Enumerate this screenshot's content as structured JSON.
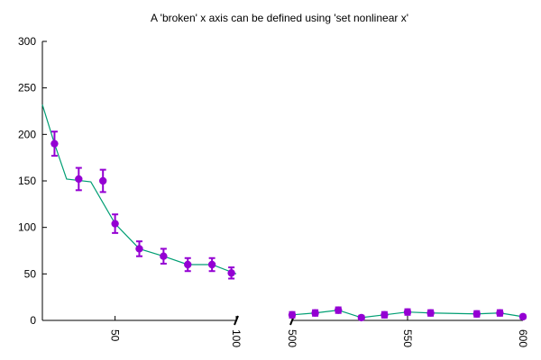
{
  "chart_data": {
    "type": "scatter",
    "title": "A 'broken' x axis can be defined using 'set nonlinear x'",
    "xlabel": "",
    "ylabel": "",
    "ylim": [
      0,
      300
    ],
    "y_ticks": [
      "0",
      "50",
      "100",
      "150",
      "200",
      "250",
      "300"
    ],
    "x_segments": [
      {
        "range": [
          20,
          100
        ],
        "ticks": [
          "50",
          "100"
        ]
      },
      {
        "range": [
          500,
          600
        ],
        "ticks": [
          "500",
          "550",
          "600"
        ]
      }
    ],
    "x_tick_labels_rotated": true,
    "axis_break": true,
    "grid": false,
    "legend": "none",
    "line_color": "#009e73",
    "marker_color": "#9400d3",
    "series": [
      {
        "line": {
          "x": [
            20,
            25,
            30,
            40,
            50,
            60,
            70,
            80,
            90,
            100
          ],
          "y": [
            232,
            190,
            152,
            149,
            104,
            77,
            69,
            60,
            60,
            50
          ]
        },
        "points": [
          {
            "x": 25,
            "y": 190,
            "err": 13
          },
          {
            "x": 35,
            "y": 152,
            "err": 12
          },
          {
            "x": 45,
            "y": 150,
            "err": 12
          },
          {
            "x": 50,
            "y": 104,
            "err": 10
          },
          {
            "x": 60,
            "y": 77,
            "err": 8
          },
          {
            "x": 70,
            "y": 69,
            "err": 8
          },
          {
            "x": 80,
            "y": 60,
            "err": 7
          },
          {
            "x": 90,
            "y": 60,
            "err": 7
          },
          {
            "x": 98,
            "y": 51,
            "err": 6
          }
        ]
      },
      {
        "line": {
          "x": [
            500,
            510,
            520,
            530,
            540,
            550,
            560,
            580,
            590,
            600
          ],
          "y": [
            6,
            8,
            11,
            3,
            6,
            9,
            8,
            7,
            8,
            4
          ]
        },
        "points": [
          {
            "x": 500,
            "y": 6,
            "err": 3
          },
          {
            "x": 510,
            "y": 8,
            "err": 3
          },
          {
            "x": 520,
            "y": 11,
            "err": 3
          },
          {
            "x": 530,
            "y": 3,
            "err": 2
          },
          {
            "x": 540,
            "y": 6,
            "err": 3
          },
          {
            "x": 550,
            "y": 9,
            "err": 3
          },
          {
            "x": 560,
            "y": 8,
            "err": 3
          },
          {
            "x": 580,
            "y": 7,
            "err": 3
          },
          {
            "x": 590,
            "y": 8,
            "err": 3
          },
          {
            "x": 600,
            "y": 4,
            "err": 2
          }
        ]
      }
    ]
  }
}
